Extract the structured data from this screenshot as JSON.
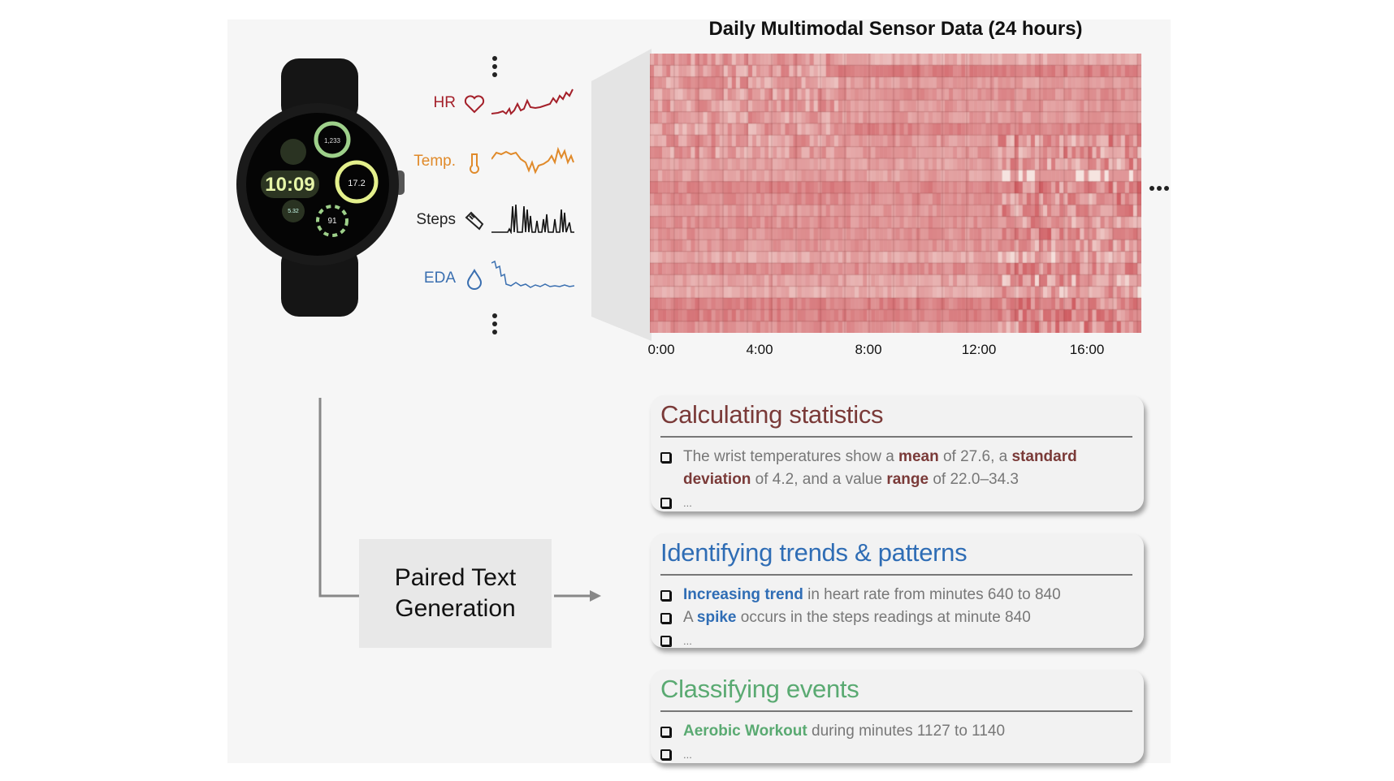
{
  "watch": {
    "time": "10:09",
    "steps": "1,233",
    "temp": "17.2",
    "small": "5.32",
    "hr": "91"
  },
  "signals": [
    {
      "label": "HR",
      "icon": "heart-icon",
      "color": "#a4202a"
    },
    {
      "label": "Temp.",
      "icon": "thermometer-icon",
      "color": "#e08a2a"
    },
    {
      "label": "Steps",
      "icon": "shoe-icon",
      "color": "#222222"
    },
    {
      "label": "EDA",
      "icon": "droplet-icon",
      "color": "#3a6fb0"
    }
  ],
  "heatmap": {
    "title": "Daily Multimodal Sensor Data (24 hours)",
    "ticks": [
      "0:00",
      "4:00",
      "8:00",
      "12:00",
      "16:00"
    ]
  },
  "paired_text": {
    "line1": "Paired Text",
    "line2": "Generation"
  },
  "cards": [
    {
      "title": "Calculating statistics",
      "color": "#7a3a38",
      "items": [
        {
          "parts": [
            [
              "The wrist temperatures show a ",
              0
            ],
            [
              "mean",
              1
            ],
            [
              " of 27.6, a ",
              0
            ],
            [
              "standard deviation",
              1
            ],
            [
              " of 4.2, and a value ",
              0
            ],
            [
              "range",
              1
            ],
            [
              " of 22.0–34.3",
              0
            ]
          ]
        },
        {
          "parts": [
            [
              "...",
              0
            ]
          ]
        }
      ]
    },
    {
      "title": "Identifying trends & patterns",
      "color": "#2f6db5",
      "items": [
        {
          "parts": [
            [
              "Increasing trend",
              1
            ],
            [
              " in heart rate from minutes 640 to 840",
              0
            ]
          ]
        },
        {
          "parts": [
            [
              "A ",
              0
            ],
            [
              "spike",
              1
            ],
            [
              " occurs in the steps readings at minute 840",
              0
            ]
          ]
        },
        {
          "parts": [
            [
              "...",
              0
            ]
          ]
        }
      ]
    },
    {
      "title": "Classifying events",
      "color": "#5aaa72",
      "items": [
        {
          "parts": [
            [
              "Aerobic Workout",
              1
            ],
            [
              " during minutes 1127 to 1140",
              0
            ]
          ]
        },
        {
          "parts": [
            [
              "...",
              0
            ]
          ]
        }
      ]
    }
  ]
}
